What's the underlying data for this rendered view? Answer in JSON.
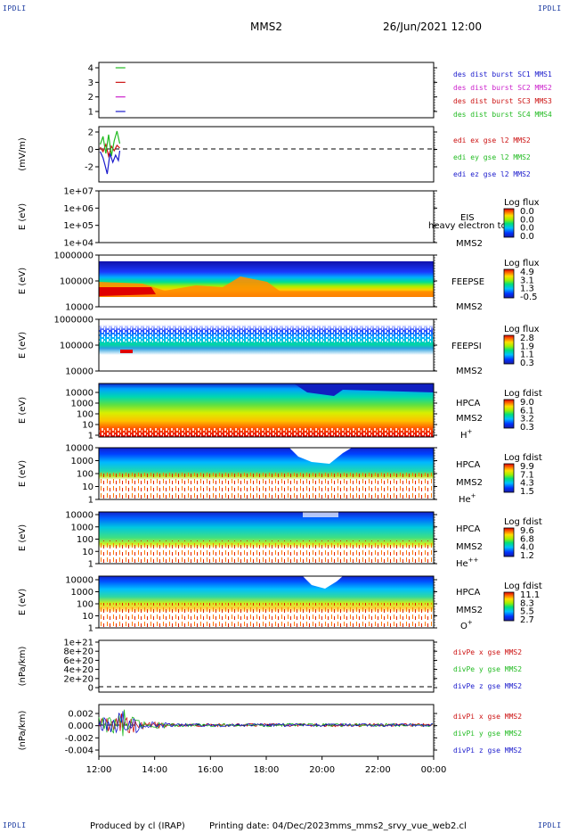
{
  "header": {
    "corner_label": "IPDLI",
    "title": "MMS2",
    "date": "26/Jun/2021 12:00"
  },
  "footer": {
    "producer": "Produced by cl (IRAP)",
    "printing_date": "Printing date: 04/Dec/2023",
    "filename": "mms_mms2_srvy_vue_web2.cl"
  },
  "chart_data": [
    {
      "type": "line",
      "panel": "burst",
      "yticks": [
        "4",
        "3",
        "2",
        "1"
      ],
      "ylim": [
        0.5,
        4.5
      ],
      "legend": [
        {
          "label": "des dist burst SC1 MMS1",
          "color": "#1a1acc"
        },
        {
          "label": "des dist burst SC2 MMS2",
          "color": "#cc22cc"
        },
        {
          "label": "des dist burst SC3 MMS3",
          "color": "#cc1111"
        },
        {
          "label": "des dist burst SC4 MMS4",
          "color": "#22bb22"
        }
      ],
      "series": [
        {
          "name": "des dist burst SC4 MMS4",
          "level": 4,
          "x": [
            12.6,
            12.95
          ],
          "color": "#22bb22"
        },
        {
          "name": "des dist burst SC3 MMS3",
          "level": 3,
          "x": [
            12.6,
            12.95
          ],
          "color": "#cc1111"
        },
        {
          "name": "des dist burst SC2 MMS2",
          "level": 2,
          "x": [
            12.6,
            12.95
          ],
          "color": "#cc22cc"
        },
        {
          "name": "des dist burst SC1 MMS1",
          "level": 1,
          "x": [
            12.6,
            12.95
          ],
          "color": "#1a1acc"
        }
      ]
    },
    {
      "type": "line",
      "panel": "edi",
      "ylabel": "(mV/m)",
      "yticks": [
        "2",
        "0",
        "-2"
      ],
      "ylim": [
        -3,
        2.5
      ],
      "legend": [
        {
          "label": "edi ex gse l2 MMS2",
          "color": "#cc1111"
        },
        {
          "label": "edi ey gse l2 MMS2",
          "color": "#22bb22"
        },
        {
          "label": "edi ez gse l2 MMS2",
          "color": "#1a1acc"
        }
      ],
      "series": [
        {
          "name": "edi ex gse l2 MMS2",
          "color": "#cc1111",
          "x": [
            12.05,
            12.15,
            12.25,
            12.35,
            12.45,
            12.55,
            12.65,
            12.75
          ],
          "y": [
            0.2,
            -0.3,
            0.5,
            -0.8,
            0.3,
            -0.2,
            0.4,
            0.1
          ]
        },
        {
          "name": "edi ey gse l2 MMS2",
          "color": "#22bb22",
          "x": [
            12.05,
            12.15,
            12.25,
            12.35,
            12.45,
            12.55,
            12.65,
            12.75
          ],
          "y": [
            0.5,
            1.4,
            -0.5,
            1.6,
            -0.8,
            0.9,
            2.0,
            0.6
          ]
        },
        {
          "name": "edi ez gse l2 MMS2",
          "color": "#1a1acc",
          "x": [
            12.05,
            12.15,
            12.22,
            12.3,
            12.4,
            12.5,
            12.6,
            12.7,
            12.75
          ],
          "y": [
            -0.3,
            -1.0,
            -1.8,
            -2.8,
            -0.5,
            -1.5,
            -0.7,
            -1.3,
            -0.2
          ]
        }
      ]
    },
    {
      "type": "heatmap",
      "panel": "eis",
      "ylabel": "E (eV)",
      "yticks": [
        "1e+07",
        "1e+06",
        "1e+05",
        "1e+04"
      ],
      "instrument": "EIS",
      "species": "heavy electron tof",
      "spacecraft": "MMS2",
      "colorbar_title": "Log flux",
      "colorbar_ticks": [
        "0.0",
        "0.0",
        "0.0",
        "0.0"
      ]
    },
    {
      "type": "heatmap",
      "panel": "feepse",
      "ylabel": "E (eV)",
      "yticks": [
        "1000000",
        "100000",
        "10000"
      ],
      "instrument": "FEEPSE",
      "spacecraft": "MMS2",
      "colorbar_title": "Log flux",
      "colorbar_ticks": [
        "4.9",
        "3.1",
        "1.3",
        "-0.5"
      ]
    },
    {
      "type": "heatmap",
      "panel": "feepsi",
      "ylabel": "E (eV)",
      "yticks": [
        "1000000",
        "100000",
        "10000"
      ],
      "instrument": "FEEPSI",
      "spacecraft": "MMS2",
      "colorbar_title": "Log flux",
      "colorbar_ticks": [
        "2.8",
        "1.9",
        "1.1",
        "0.3"
      ]
    },
    {
      "type": "heatmap",
      "panel": "hpca_h",
      "ylabel": "E (eV)",
      "yticks": [
        "10000",
        "1000",
        "100",
        "10",
        "1"
      ],
      "instrument": "HPCA",
      "spacecraft": "MMS2",
      "ion_base": "H",
      "ion_charge": "+",
      "colorbar_title": "Log fdist",
      "colorbar_ticks": [
        "9.0",
        "6.1",
        "3.2",
        "0.3"
      ]
    },
    {
      "type": "heatmap",
      "panel": "hpca_he",
      "ylabel": "E (eV)",
      "yticks": [
        "10000",
        "1000",
        "100",
        "10",
        "1"
      ],
      "instrument": "HPCA",
      "spacecraft": "MMS2",
      "ion_base": "He",
      "ion_charge": "+",
      "colorbar_title": "Log fdist",
      "colorbar_ticks": [
        "9.9",
        "7.1",
        "4.3",
        "1.5"
      ]
    },
    {
      "type": "heatmap",
      "panel": "hpca_he2",
      "ylabel": "E (eV)",
      "yticks": [
        "10000",
        "1000",
        "100",
        "10",
        "1"
      ],
      "instrument": "HPCA",
      "spacecraft": "MMS2",
      "ion_base": "He",
      "ion_charge": "++",
      "colorbar_title": "Log fdist",
      "colorbar_ticks": [
        "9.6",
        "6.8",
        "4.0",
        "1.2"
      ]
    },
    {
      "type": "heatmap",
      "panel": "hpca_o",
      "ylabel": "E (eV)",
      "yticks": [
        "10000",
        "1000",
        "100",
        "10",
        "1"
      ],
      "instrument": "HPCA",
      "spacecraft": "MMS2",
      "ion_base": "O",
      "ion_charge": "+",
      "colorbar_title": "Log fdist",
      "colorbar_ticks": [
        "11.1",
        "8.3",
        "5.5",
        "2.7"
      ]
    },
    {
      "type": "line",
      "panel": "divpe",
      "ylabel": "(nPa/km)",
      "yticks": [
        "1e+21",
        "8e+20",
        "6e+20",
        "4e+20",
        "2e+20",
        "0"
      ],
      "ylim": [
        -1e+20,
        1.1e+21
      ],
      "legend": [
        {
          "label": "divPe x gse MMS2",
          "color": "#cc1111"
        },
        {
          "label": "divPe y gse MMS2",
          "color": "#22bb22"
        },
        {
          "label": "divPe z gse MMS2",
          "color": "#1a1acc"
        }
      ]
    },
    {
      "type": "line",
      "panel": "divpi",
      "ylabel": "(nPa/km)",
      "yticks": [
        "0.002",
        "0.000",
        "-0.002",
        "-0.004"
      ],
      "ylim": [
        -0.0046,
        0.003
      ],
      "legend": [
        {
          "label": "divPi x gse MMS2",
          "color": "#cc1111"
        },
        {
          "label": "divPi y gse MMS2",
          "color": "#22bb22"
        },
        {
          "label": "divPi z gse MMS2",
          "color": "#1a1acc"
        }
      ]
    }
  ],
  "time_axis": {
    "ticks": [
      "12:00",
      "14:00",
      "16:00",
      "18:00",
      "20:00",
      "22:00",
      "00:00"
    ],
    "start_hour": 12,
    "end_hour": 24
  }
}
